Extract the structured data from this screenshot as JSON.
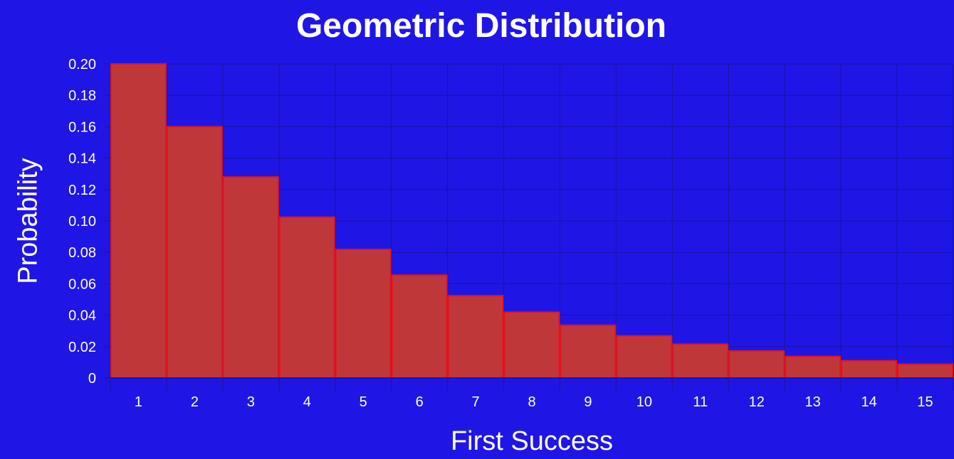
{
  "chart_data": {
    "type": "bar",
    "title": "Geometric Distribution",
    "xlabel": "First Success",
    "ylabel": "Probability",
    "categories": [
      "1",
      "2",
      "3",
      "4",
      "5",
      "6",
      "7",
      "8",
      "9",
      "10",
      "11",
      "12",
      "13",
      "14",
      "15"
    ],
    "values": [
      0.2,
      0.16,
      0.128,
      0.1024,
      0.0819,
      0.0655,
      0.0524,
      0.0419,
      0.0336,
      0.0268,
      0.0215,
      0.0172,
      0.0137,
      0.011,
      0.0088
    ],
    "ylim": [
      0,
      0.2
    ],
    "yticks": [
      "0",
      "0.02",
      "0.04",
      "0.06",
      "0.08",
      "0.10",
      "0.12",
      "0.14",
      "0.16",
      "0.18",
      "0.20"
    ],
    "grid": true,
    "legend": "none",
    "colors": {
      "background": "#1f16e6",
      "bar_fill": "#c0373a",
      "bar_stroke": "#e0161c",
      "grid": "#1a14b4",
      "text": "#ffffff"
    }
  }
}
